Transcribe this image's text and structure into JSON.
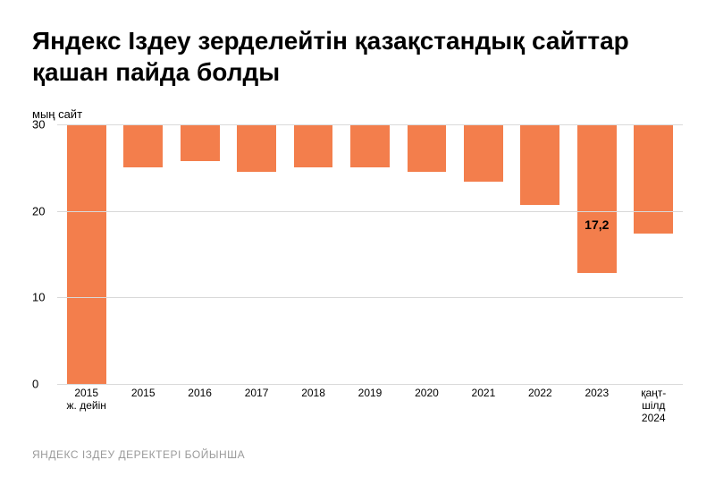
{
  "title": "Яндекс Іздеу зерделейтін қазақстандық сайттар қашан пайда болды",
  "ylabel": "мың сайт",
  "footer": "ЯНДЕКС ІЗДЕУ ДЕРЕКТЕРІ БОЙЫНША",
  "chart": {
    "type": "bar",
    "bar_color": "#f37e4c",
    "background_color": "#ffffff",
    "grid_color": "#d9d9d9",
    "text_color": "#000000",
    "footer_color": "#9a9a9a",
    "title_fontsize": 28,
    "label_fontsize": 13,
    "tick_fontsize": 12,
    "ylim": [
      0,
      30
    ],
    "yticks": [
      0,
      10,
      20,
      30
    ],
    "categories": [
      "2015 ж. дейін",
      "2015",
      "2016",
      "2017",
      "2018",
      "2019",
      "2020",
      "2021",
      "2022",
      "2023",
      "қаңт-шілд 2024"
    ],
    "values": [
      30.5,
      5.0,
      4.2,
      5.5,
      5.0,
      5.0,
      5.5,
      6.6,
      9.3,
      17.2,
      12.6
    ],
    "value_labels": [
      "",
      "",
      "",
      "",
      "",
      "",
      "",
      "",
      "",
      "17,2",
      ""
    ],
    "bar_width": 0.82
  }
}
